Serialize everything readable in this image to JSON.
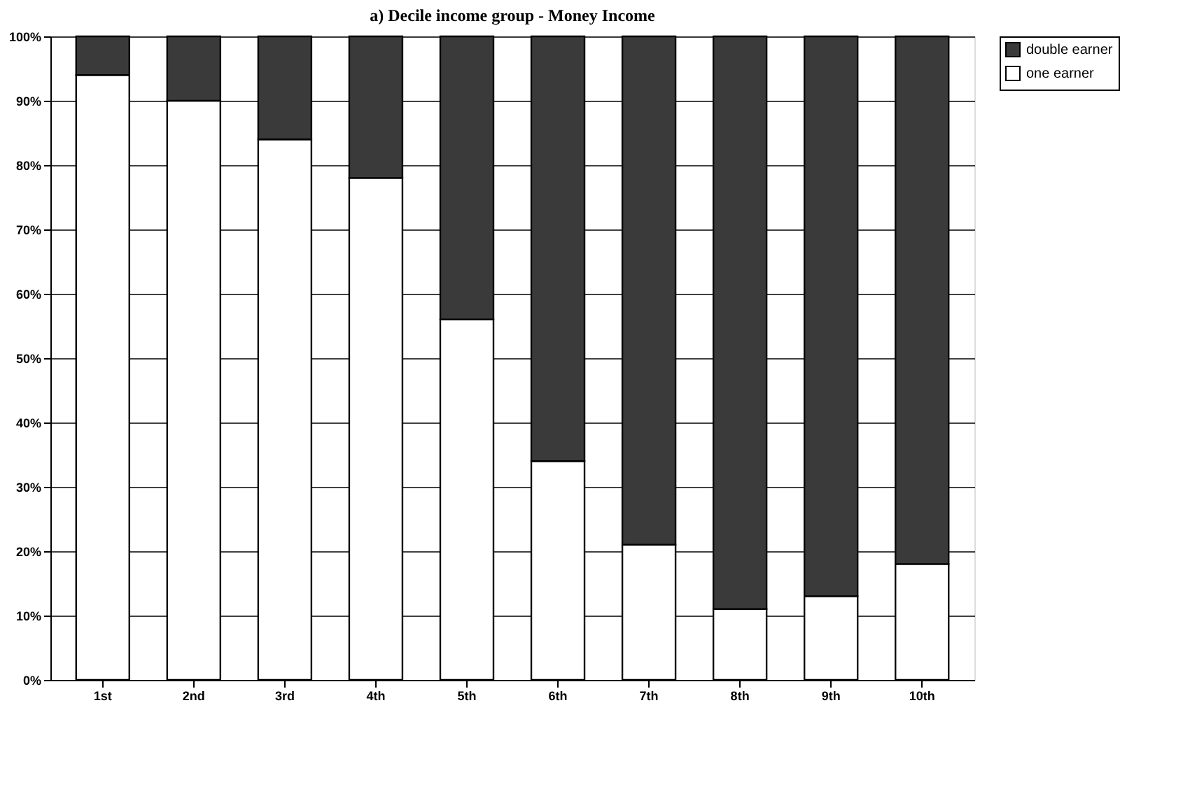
{
  "chart_data": {
    "type": "bar",
    "title": "a) Decile  income group - Money Income",
    "categories": [
      "1st",
      "2nd",
      "3rd",
      "4th",
      "5th",
      "6th",
      "7th",
      "8th",
      "9th",
      "10th"
    ],
    "stacked": true,
    "series": [
      {
        "name": "one earner",
        "color": "#ffffff",
        "values": [
          94,
          90,
          84,
          78,
          56,
          34,
          21,
          11,
          13,
          18
        ]
      },
      {
        "name": "double earner",
        "color": "#3a3a3a",
        "values": [
          6,
          10,
          16,
          22,
          44,
          66,
          79,
          89,
          87,
          82
        ]
      }
    ],
    "ylim": [
      0,
      100
    ],
    "yticks": [
      {
        "value": 0,
        "label": "0%"
      },
      {
        "value": 10,
        "label": "10%"
      },
      {
        "value": 20,
        "label": "20%"
      },
      {
        "value": 30,
        "label": "30%"
      },
      {
        "value": 40,
        "label": "40%"
      },
      {
        "value": 50,
        "label": "50%"
      },
      {
        "value": 60,
        "label": "60%"
      },
      {
        "value": 70,
        "label": "70%"
      },
      {
        "value": 80,
        "label": "80%"
      },
      {
        "value": 90,
        "label": "90%"
      },
      {
        "value": 100,
        "label": "100%"
      }
    ],
    "grid": "y",
    "legend": "right"
  }
}
